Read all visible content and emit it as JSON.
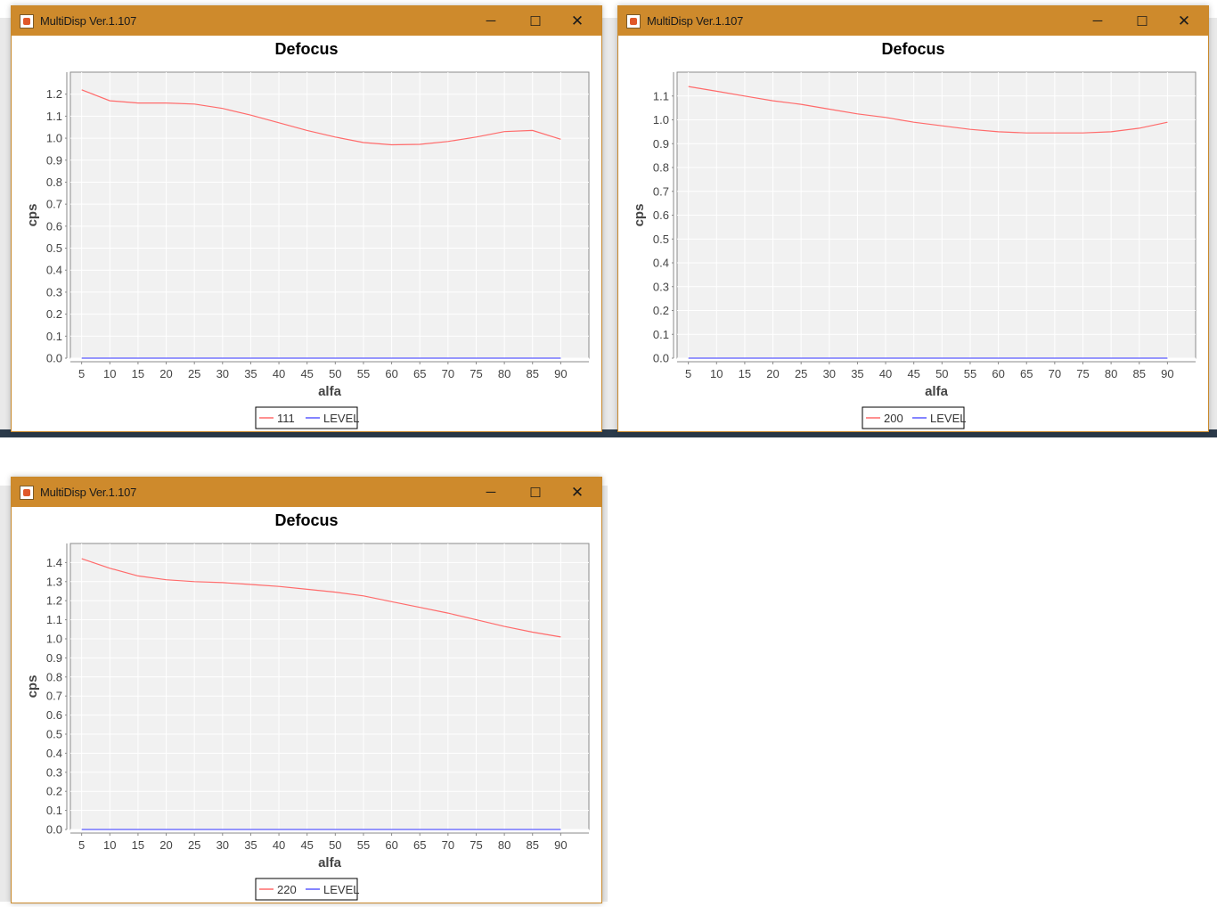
{
  "windows": [
    {
      "title": "MultiDisp Ver.1.107",
      "controls": {
        "minimize": "─",
        "maximize": "☐",
        "close": "✕"
      },
      "chart_data": {
        "type": "line",
        "title": "Defocus",
        "xlabel": "alfa",
        "ylabel": "cps",
        "x": [
          5,
          10,
          15,
          20,
          25,
          30,
          35,
          40,
          45,
          50,
          55,
          60,
          65,
          70,
          75,
          80,
          85,
          90
        ],
        "ylim": [
          0,
          1.3
        ],
        "yticks": [
          0.0,
          0.1,
          0.2,
          0.3,
          0.4,
          0.5,
          0.6,
          0.7,
          0.8,
          0.9,
          1.0,
          1.1,
          1.2
        ],
        "xlim": [
          3,
          95
        ],
        "legend_position": "bottom",
        "series": [
          {
            "name": "111",
            "color": "#ff6b6b",
            "values": [
              1.22,
              1.17,
              1.16,
              1.16,
              1.155,
              1.135,
              1.105,
              1.07,
              1.035,
              1.005,
              0.98,
              0.97,
              0.972,
              0.985,
              1.005,
              1.03,
              1.035,
              0.995
            ]
          },
          {
            "name": "LEVEL",
            "color": "#5a5aff",
            "values": [
              0,
              0,
              0,
              0,
              0,
              0,
              0,
              0,
              0,
              0,
              0,
              0,
              0,
              0,
              0,
              0,
              0,
              0
            ]
          }
        ]
      }
    },
    {
      "title": "MultiDisp Ver.1.107",
      "controls": {
        "minimize": "─",
        "maximize": "☐",
        "close": "✕"
      },
      "chart_data": {
        "type": "line",
        "title": "Defocus",
        "xlabel": "alfa",
        "ylabel": "cps",
        "x": [
          5,
          10,
          15,
          20,
          25,
          30,
          35,
          40,
          45,
          50,
          55,
          60,
          65,
          70,
          75,
          80,
          85,
          90
        ],
        "ylim": [
          0,
          1.2
        ],
        "yticks": [
          0.0,
          0.1,
          0.2,
          0.3,
          0.4,
          0.5,
          0.6,
          0.7,
          0.8,
          0.9,
          1.0,
          1.1
        ],
        "xlim": [
          3,
          95
        ],
        "legend_position": "bottom",
        "series": [
          {
            "name": "200",
            "color": "#ff6b6b",
            "values": [
              1.14,
              1.12,
              1.1,
              1.08,
              1.065,
              1.045,
              1.025,
              1.01,
              0.99,
              0.975,
              0.96,
              0.95,
              0.945,
              0.945,
              0.945,
              0.95,
              0.965,
              0.99
            ]
          },
          {
            "name": "LEVEL",
            "color": "#5a5aff",
            "values": [
              0,
              0,
              0,
              0,
              0,
              0,
              0,
              0,
              0,
              0,
              0,
              0,
              0,
              0,
              0,
              0,
              0,
              0
            ]
          }
        ]
      }
    },
    {
      "title": "MultiDisp Ver.1.107",
      "controls": {
        "minimize": "─",
        "maximize": "☐",
        "close": "✕"
      },
      "chart_data": {
        "type": "line",
        "title": "Defocus",
        "xlabel": "alfa",
        "ylabel": "cps",
        "x": [
          5,
          10,
          15,
          20,
          25,
          30,
          35,
          40,
          45,
          50,
          55,
          60,
          65,
          70,
          75,
          80,
          85,
          90
        ],
        "ylim": [
          0,
          1.5
        ],
        "yticks": [
          0.0,
          0.1,
          0.2,
          0.3,
          0.4,
          0.5,
          0.6,
          0.7,
          0.8,
          0.9,
          1.0,
          1.1,
          1.2,
          1.3,
          1.4
        ],
        "xlim": [
          3,
          95
        ],
        "legend_position": "bottom",
        "series": [
          {
            "name": "220",
            "color": "#ff6b6b",
            "values": [
              1.42,
              1.37,
              1.33,
              1.31,
              1.3,
              1.295,
              1.285,
              1.275,
              1.26,
              1.245,
              1.225,
              1.195,
              1.165,
              1.135,
              1.1,
              1.065,
              1.035,
              1.01
            ]
          },
          {
            "name": "LEVEL",
            "color": "#5a5aff",
            "values": [
              0,
              0,
              0,
              0,
              0,
              0,
              0,
              0,
              0,
              0,
              0,
              0,
              0,
              0,
              0,
              0,
              0,
              0
            ]
          }
        ]
      }
    }
  ]
}
